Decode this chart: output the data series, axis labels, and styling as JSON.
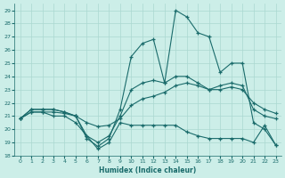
{
  "xlabel": "Humidex (Indice chaleur)",
  "bg_color": "#cceee8",
  "grid_color": "#aad8d0",
  "line_color": "#1a6b6b",
  "xlim": [
    -0.5,
    23.5
  ],
  "ylim": [
    18,
    29.5
  ],
  "yticks": [
    18,
    19,
    20,
    21,
    22,
    23,
    24,
    25,
    26,
    27,
    28,
    29
  ],
  "xticks": [
    0,
    1,
    2,
    3,
    4,
    5,
    6,
    7,
    8,
    9,
    10,
    11,
    12,
    13,
    14,
    15,
    16,
    17,
    18,
    19,
    20,
    21,
    22,
    23
  ],
  "series1_x": [
    0,
    1,
    2,
    3,
    4,
    5,
    6,
    7,
    8,
    9,
    10,
    11,
    12,
    13,
    14,
    15,
    16,
    17,
    18,
    19,
    20,
    21,
    22,
    23
  ],
  "series1_y": [
    20.8,
    21.5,
    21.5,
    21.5,
    21.3,
    21.0,
    19.3,
    18.7,
    19.3,
    21.5,
    25.5,
    26.5,
    26.8,
    23.5,
    29.0,
    28.5,
    27.3,
    27.0,
    24.3,
    25.0,
    25.0,
    20.5,
    20.0,
    18.8
  ],
  "series2_x": [
    0,
    1,
    2,
    3,
    4,
    5,
    6,
    7,
    8,
    9,
    10,
    11,
    12,
    13,
    14,
    15,
    16,
    17,
    18,
    19,
    20,
    21,
    22,
    23
  ],
  "series2_y": [
    20.8,
    21.5,
    21.5,
    21.5,
    21.3,
    21.0,
    19.5,
    19.0,
    19.5,
    21.0,
    23.0,
    23.5,
    23.7,
    23.5,
    24.0,
    24.0,
    23.5,
    23.0,
    23.3,
    23.5,
    23.3,
    21.5,
    21.0,
    20.8
  ],
  "series3_x": [
    0,
    1,
    2,
    3,
    4,
    5,
    6,
    7,
    8,
    9,
    10,
    11,
    12,
    13,
    14,
    15,
    16,
    17,
    18,
    19,
    20,
    21,
    22,
    23
  ],
  "series3_y": [
    20.8,
    21.3,
    21.3,
    21.3,
    21.2,
    21.0,
    20.5,
    20.2,
    20.3,
    20.8,
    21.8,
    22.3,
    22.5,
    22.8,
    23.3,
    23.5,
    23.3,
    23.0,
    23.0,
    23.2,
    23.0,
    22.0,
    21.5,
    21.2
  ],
  "series4_x": [
    0,
    1,
    2,
    3,
    4,
    5,
    6,
    7,
    8,
    9,
    10,
    11,
    12,
    13,
    14,
    15,
    16,
    17,
    18,
    19,
    20,
    21,
    22,
    23
  ],
  "series4_y": [
    20.8,
    21.3,
    21.3,
    21.0,
    21.0,
    20.5,
    19.5,
    18.5,
    19.0,
    20.5,
    20.3,
    20.3,
    20.3,
    20.3,
    20.3,
    19.8,
    19.5,
    19.3,
    19.3,
    19.3,
    19.3,
    19.0,
    20.3,
    18.8
  ]
}
